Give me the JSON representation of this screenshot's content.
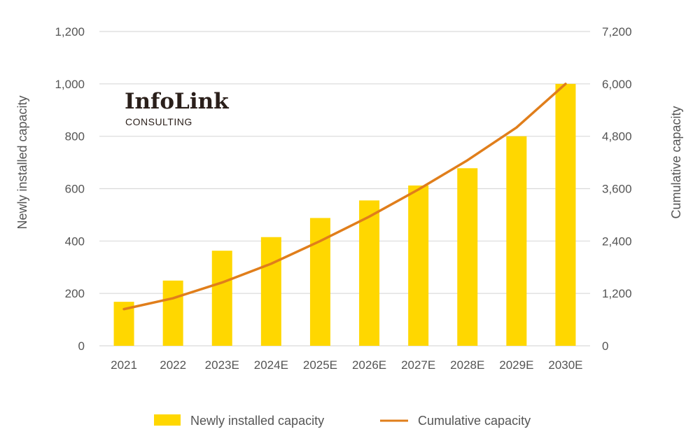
{
  "chart_data": {
    "type": "bar",
    "categories": [
      "2021",
      "2022",
      "2023E",
      "2024E",
      "2025E",
      "2026E",
      "2027E",
      "2028E",
      "2029E",
      "2030E"
    ],
    "series": [
      {
        "name": "Newly installed capacity",
        "type": "bar",
        "axis": "left",
        "color": "#FFD700",
        "values": [
          168,
          249,
          363,
          415,
          488,
          555,
          612,
          678,
          800,
          1000
        ]
      },
      {
        "name": "Cumulative capacity",
        "type": "line",
        "axis": "right",
        "color": "#E07E1B",
        "values": [
          840,
          1090,
          1450,
          1880,
          2400,
          2960,
          3580,
          4250,
          5000,
          6000
        ]
      }
    ],
    "ylabel": "Newly installed capacity",
    "y2label": "Cumulative capacity",
    "ylim": [
      0,
      1200
    ],
    "y2lim": [
      0,
      7200
    ],
    "yticks": [
      "0",
      "200",
      "400",
      "600",
      "800",
      "1,000",
      "1,200"
    ],
    "y2ticks": [
      "0",
      "1,200",
      "2,400",
      "3,600",
      "4,800",
      "6,000",
      "7,200"
    ],
    "grid": true,
    "legend_position": "bottom"
  },
  "logo": {
    "name": "InfoLink",
    "subtitle": "CONSULTING"
  }
}
